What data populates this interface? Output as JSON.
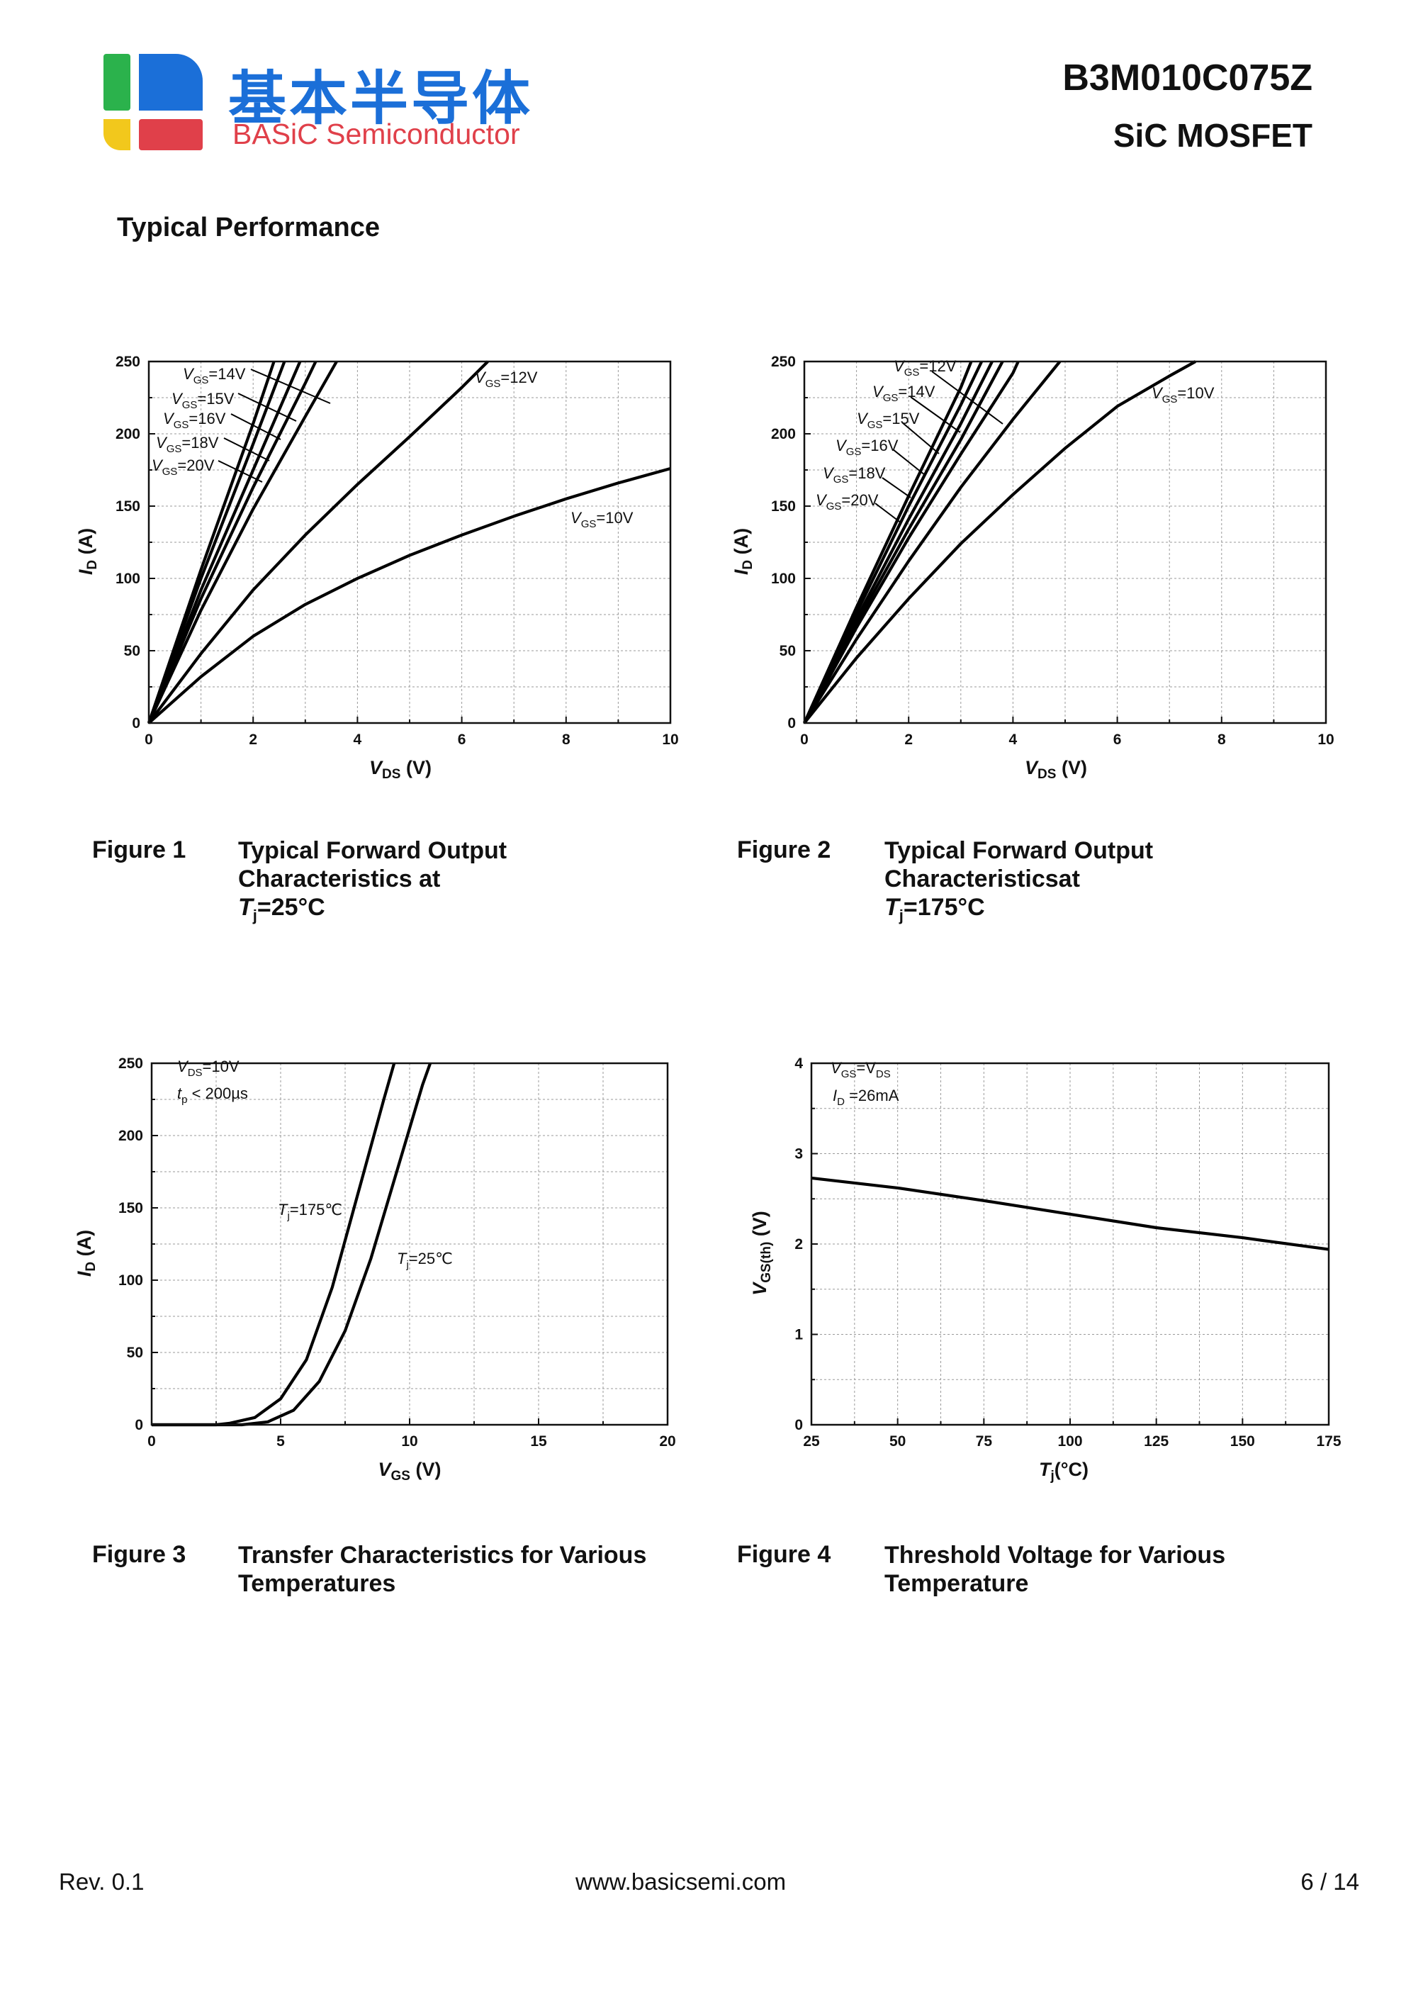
{
  "header": {
    "brand_cn": "基本半导体",
    "brand_en": "BASiC Semiconductor",
    "part_number": "B3M010C075Z",
    "device_type": "SiC MOSFET",
    "logo_colors": [
      "#2bb24c",
      "#1b6fd8",
      "#f2c81c",
      "#e0404a"
    ]
  },
  "section_title": "Typical Performance",
  "figures": [
    {
      "number": "Figure 1",
      "caption_lines": [
        "Typical Forward Output",
        "Characteristics at"
      ],
      "temp_symbol": "T",
      "temp_sub": "j",
      "temp_value": "=25°C"
    },
    {
      "number": "Figure 2",
      "caption_lines": [
        "Typical Forward Output",
        "Characteristicsat"
      ],
      "temp_symbol": "T",
      "temp_sub": "j",
      "temp_value": "=175°C"
    },
    {
      "number": "Figure 3",
      "caption_lines": [
        "Transfer Characteristics for Various",
        "Temperatures"
      ]
    },
    {
      "number": "Figure 4",
      "caption_lines": [
        "Threshold Voltage for Various",
        "Temperature"
      ]
    }
  ],
  "footer": {
    "revision": "Rev. 0.1",
    "website": "www.basicsemi.com",
    "page": "6 / 14"
  },
  "chart_data": [
    {
      "type": "line",
      "title": "Typical Forward Output Characteristics at Tj=25°C",
      "xlabel": "VDS (V)",
      "ylabel": "ID (A)",
      "xlim": [
        0,
        10
      ],
      "ylim": [
        0,
        250
      ],
      "xticks": [
        0,
        2,
        4,
        6,
        8,
        10
      ],
      "yticks": [
        0,
        50,
        100,
        150,
        200,
        250
      ],
      "grid": true,
      "series": [
        {
          "name": "VGS=10V",
          "x": [
            0,
            1,
            2,
            3,
            4,
            5,
            6,
            7,
            8,
            9,
            10
          ],
          "y": [
            0,
            32,
            60,
            82,
            100,
            116,
            130,
            143,
            155,
            166,
            176
          ]
        },
        {
          "name": "VGS=12V",
          "x": [
            0,
            1,
            2,
            3,
            4,
            5,
            6,
            6.5
          ],
          "y": [
            0,
            48,
            92,
            130,
            165,
            198,
            232,
            250
          ]
        },
        {
          "name": "VGS=14V",
          "x": [
            0,
            1,
            2,
            3,
            3.6
          ],
          "y": [
            0,
            78,
            148,
            212,
            250
          ]
        },
        {
          "name": "VGS=15V",
          "x": [
            0,
            1,
            2,
            3,
            3.2
          ],
          "y": [
            0,
            86,
            163,
            235,
            250
          ]
        },
        {
          "name": "VGS=16V",
          "x": [
            0,
            1,
            2,
            2.9
          ],
          "y": [
            0,
            92,
            175,
            250
          ]
        },
        {
          "name": "VGS=18V",
          "x": [
            0,
            1,
            2,
            2.6
          ],
          "y": [
            0,
            100,
            193,
            250
          ]
        },
        {
          "name": "VGS=20V",
          "x": [
            0,
            1,
            2,
            2.4
          ],
          "y": [
            0,
            106,
            207,
            250
          ]
        }
      ],
      "annotations": [
        {
          "base": "V",
          "sub": "GS",
          "value": "=14V"
        },
        {
          "base": "V",
          "sub": "GS",
          "value": "=15V"
        },
        {
          "base": "V",
          "sub": "GS",
          "value": "=16V"
        },
        {
          "base": "V",
          "sub": "GS",
          "value": "=18V"
        },
        {
          "base": "V",
          "sub": "GS",
          "value": "=20V"
        },
        {
          "base": "V",
          "sub": "GS",
          "value": "=12V"
        },
        {
          "base": "V",
          "sub": "GS",
          "value": "=10V"
        }
      ]
    },
    {
      "type": "line",
      "title": "Typical Forward Output Characteristics at Tj=175°C",
      "xlabel": "VDS (V)",
      "ylabel": "ID (A)",
      "xlim": [
        0,
        10
      ],
      "ylim": [
        0,
        250
      ],
      "xticks": [
        0,
        2,
        4,
        6,
        8,
        10
      ],
      "yticks": [
        0,
        50,
        100,
        150,
        200,
        250
      ],
      "grid": true,
      "series": [
        {
          "name": "VGS=10V",
          "x": [
            0,
            1,
            2,
            3,
            4,
            5,
            6,
            7,
            7.5
          ],
          "y": [
            0,
            45,
            86,
            124,
            158,
            190,
            219,
            240,
            250
          ]
        },
        {
          "name": "VGS=12V",
          "x": [
            0,
            1,
            2,
            3,
            4,
            4.9
          ],
          "y": [
            0,
            58,
            112,
            163,
            210,
            250
          ]
        },
        {
          "name": "VGS=14V",
          "x": [
            0,
            1,
            2,
            3,
            4,
            4.1
          ],
          "y": [
            0,
            66,
            128,
            186,
            242,
            250
          ]
        },
        {
          "name": "VGS=15V",
          "x": [
            0,
            1,
            2,
            3,
            3.8
          ],
          "y": [
            0,
            69,
            134,
            196,
            250
          ]
        },
        {
          "name": "VGS=16V",
          "x": [
            0,
            1,
            2,
            3,
            3.6
          ],
          "y": [
            0,
            72,
            141,
            207,
            250
          ]
        },
        {
          "name": "VGS=18V",
          "x": [
            0,
            1,
            2,
            3,
            3.4
          ],
          "y": [
            0,
            76,
            150,
            220,
            250
          ]
        },
        {
          "name": "VGS=20V",
          "x": [
            0,
            1,
            2,
            3,
            3.2
          ],
          "y": [
            0,
            80,
            157,
            232,
            250
          ]
        }
      ],
      "annotations": [
        {
          "base": "V",
          "sub": "GS",
          "value": "=12V"
        },
        {
          "base": "V",
          "sub": "GS",
          "value": "=14V"
        },
        {
          "base": "V",
          "sub": "GS",
          "value": "=15V"
        },
        {
          "base": "V",
          "sub": "GS",
          "value": "=16V"
        },
        {
          "base": "V",
          "sub": "GS",
          "value": "=18V"
        },
        {
          "base": "V",
          "sub": "GS",
          "value": "=20V"
        },
        {
          "base": "V",
          "sub": "GS",
          "value": "=10V"
        }
      ]
    },
    {
      "type": "line",
      "title": "Transfer Characteristics for Various Temperatures",
      "xlabel": "VGS (V)",
      "ylabel": "ID (A)",
      "xlim": [
        0,
        20
      ],
      "ylim": [
        0,
        250
      ],
      "xticks": [
        0,
        5,
        10,
        15,
        20
      ],
      "yticks": [
        0,
        50,
        100,
        150,
        200,
        250
      ],
      "grid": true,
      "series": [
        {
          "name": "Tj=175°C",
          "x": [
            0,
            2.5,
            3,
            4,
            5,
            6,
            7,
            8,
            9,
            9.4
          ],
          "y": [
            0,
            0,
            1,
            5,
            18,
            45,
            95,
            160,
            225,
            250
          ]
        },
        {
          "name": "Tj=25°C",
          "x": [
            0,
            3.5,
            4.5,
            5.5,
            6.5,
            7.5,
            8.5,
            9.5,
            10.5,
            10.8
          ],
          "y": [
            0,
            0,
            2,
            10,
            30,
            65,
            115,
            175,
            235,
            250
          ]
        }
      ],
      "annotations": [
        {
          "base": "V",
          "sub": "DS",
          "value": "=10V"
        },
        {
          "base": "t",
          "sub": "p",
          "value": " < 200µs"
        },
        {
          "base": "T",
          "sub": "j",
          "value": "=175℃"
        },
        {
          "base": "T",
          "sub": "j",
          "value": "=25℃"
        }
      ]
    },
    {
      "type": "line",
      "title": "Threshold Voltage for Various Temperature",
      "xlabel": "Tj(°C)",
      "ylabel": "VGS(th) (V)",
      "xlim": [
        25,
        175
      ],
      "ylim": [
        0,
        4
      ],
      "xticks": [
        25,
        50,
        75,
        100,
        125,
        150,
        175
      ],
      "yticks": [
        0,
        1,
        2,
        3,
        4
      ],
      "grid": true,
      "series": [
        {
          "name": "VGS(th)",
          "x": [
            25,
            50,
            75,
            100,
            125,
            150,
            175
          ],
          "y": [
            2.73,
            2.62,
            2.48,
            2.33,
            2.18,
            2.07,
            1.94
          ]
        }
      ],
      "annotations": [
        {
          "base": "V",
          "sub": "GS",
          "value": "=V",
          "sub2": "DS"
        },
        {
          "base": "I",
          "sub": "D",
          "value": " =26mA"
        }
      ]
    }
  ]
}
